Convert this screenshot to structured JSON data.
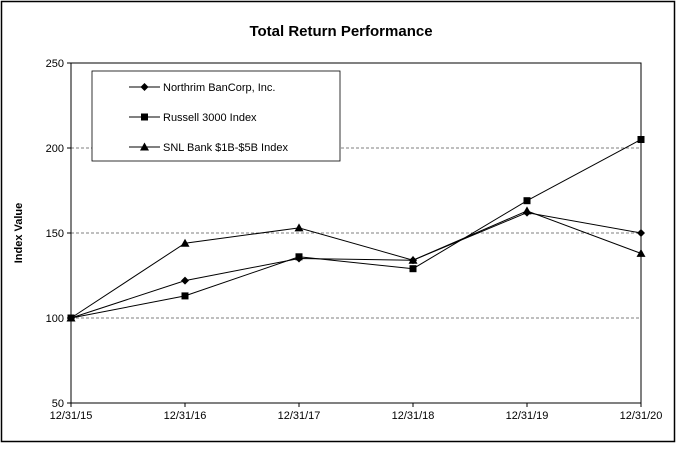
{
  "chart_data": {
    "type": "line",
    "title": "Total Return Performance",
    "xlabel": "",
    "ylabel": "Index Value",
    "categories": [
      "12/31/15",
      "12/31/16",
      "12/31/17",
      "12/31/18",
      "12/31/19",
      "12/31/20"
    ],
    "ylim": [
      50,
      250
    ],
    "yticks": [
      50,
      100,
      150,
      200,
      250
    ],
    "grid_lines_at": [
      100,
      150,
      200
    ],
    "legend_placement": "top-left",
    "series": [
      {
        "name": "Northrim BanCorp, Inc.",
        "marker": "diamond",
        "values": [
          100,
          122,
          135,
          134,
          162,
          150
        ]
      },
      {
        "name": "Russell 3000 Index",
        "marker": "square",
        "values": [
          100,
          113,
          136,
          129,
          169,
          205
        ]
      },
      {
        "name": "SNL Bank $1B-$5B Index",
        "marker": "triangle",
        "values": [
          100,
          144,
          153,
          134,
          163,
          138
        ]
      }
    ]
  }
}
